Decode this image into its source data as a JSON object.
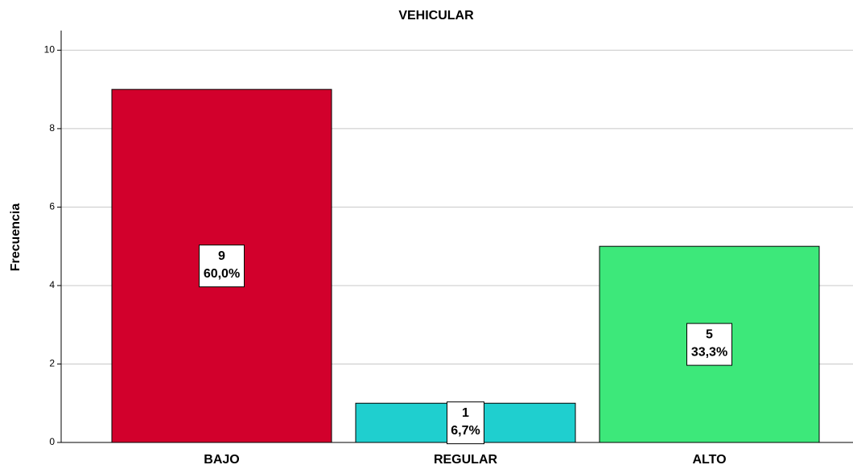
{
  "chart_data": {
    "type": "bar",
    "title": "VEHICULAR",
    "y_label": "Frecuencia",
    "categories": [
      "BAJO",
      "REGULAR",
      "ALTO"
    ],
    "values": [
      9,
      1,
      5
    ],
    "percentages": [
      60.0,
      6.7,
      33.3
    ],
    "percent_labels": [
      "60,0%",
      "6,7%",
      "33,3%"
    ],
    "colors": [
      "#d2002c",
      "#1fcfcf",
      "#3de87a"
    ],
    "ylim": [
      0,
      10.5
    ],
    "yticks": [
      0,
      2,
      4,
      6,
      8,
      10
    ],
    "grid": true
  }
}
